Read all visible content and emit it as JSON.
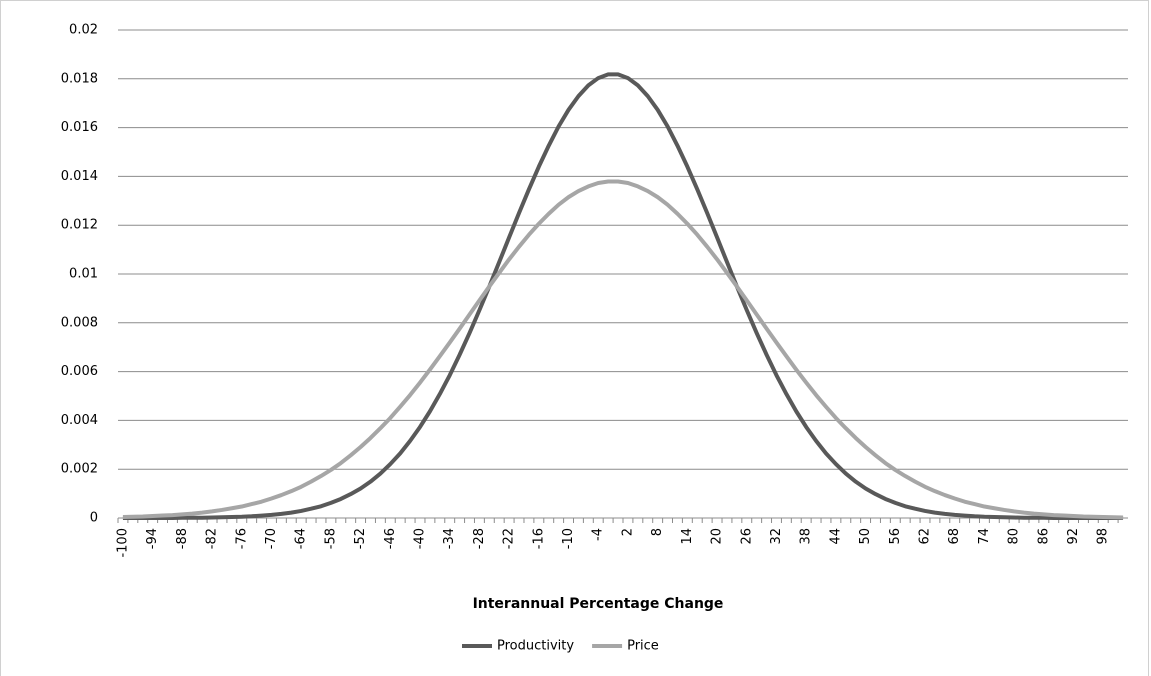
{
  "chart_data": {
    "type": "line",
    "x_label": "Interannual Percentage Change",
    "categories": [
      "-100",
      null,
      null,
      "-94",
      null,
      null,
      "-88",
      null,
      null,
      "-82",
      null,
      null,
      "-76",
      null,
      null,
      "-70",
      null,
      null,
      "-64",
      null,
      null,
      "-58",
      null,
      null,
      "-52",
      null,
      null,
      "-46",
      null,
      null,
      "-40",
      null,
      null,
      "-34",
      null,
      null,
      "-28",
      null,
      null,
      "-22",
      null,
      null,
      "-16",
      null,
      null,
      "-10",
      null,
      null,
      "-4",
      null,
      null,
      "2",
      null,
      null,
      "8",
      null,
      null,
      "14",
      null,
      null,
      "20",
      null,
      null,
      "26",
      null,
      null,
      "32",
      null,
      null,
      "38",
      null,
      null,
      "44",
      null,
      null,
      "50",
      null,
      null,
      "56",
      null,
      null,
      "62",
      null,
      null,
      "68",
      null,
      null,
      "74",
      null,
      null,
      "80",
      null,
      null,
      "86",
      null,
      null,
      "92",
      null,
      null,
      "98",
      null,
      null
    ],
    "series": [
      {
        "name": "Productivity",
        "color": "#595959",
        "values": [
          0,
          0,
          0,
          0,
          0,
          0,
          1e-05,
          1e-05,
          1e-05,
          2e-05,
          3e-05,
          4e-05,
          5e-05,
          7e-05,
          0.0001,
          0.00013,
          0.00017,
          0.00022,
          0.00029,
          0.00038,
          0.00048,
          0.00062,
          0.00078,
          0.00098,
          0.00121,
          0.00149,
          0.00182,
          0.00221,
          0.00265,
          0.00316,
          0.00373,
          0.00437,
          0.00508,
          0.00585,
          0.00669,
          0.00758,
          0.00852,
          0.00949,
          0.01049,
          0.0115,
          0.0125,
          0.01347,
          0.0144,
          0.01526,
          0.01605,
          0.01673,
          0.01729,
          0.01773,
          0.01803,
          0.01818,
          0.01818,
          0.01803,
          0.01773,
          0.01729,
          0.01673,
          0.01605,
          0.01526,
          0.0144,
          0.01347,
          0.0125,
          0.0115,
          0.01049,
          0.00949,
          0.00852,
          0.00758,
          0.00669,
          0.00585,
          0.00508,
          0.00437,
          0.00373,
          0.00316,
          0.00265,
          0.00221,
          0.00182,
          0.00149,
          0.00121,
          0.00098,
          0.00078,
          0.00062,
          0.00048,
          0.00038,
          0.00029,
          0.00022,
          0.00017,
          0.00013,
          0.0001,
          7e-05,
          5e-05,
          4e-05,
          3e-05,
          2e-05,
          1e-05,
          1e-05,
          1e-05,
          0,
          0,
          0,
          0,
          0,
          0,
          0,
          0
        ]
      },
      {
        "name": "Price",
        "color": "#a6a6a6",
        "values": [
          4e-05,
          5e-05,
          6e-05,
          8e-05,
          0.0001,
          0.00012,
          0.00015,
          0.00018,
          0.00022,
          0.00027,
          0.00033,
          0.0004,
          0.00047,
          0.00057,
          0.00067,
          0.0008,
          0.00094,
          0.0011,
          0.00128,
          0.00149,
          0.00172,
          0.00197,
          0.00225,
          0.00257,
          0.00291,
          0.00328,
          0.00368,
          0.0041,
          0.00456,
          0.00504,
          0.00555,
          0.00608,
          0.00663,
          0.00719,
          0.00776,
          0.00834,
          0.00892,
          0.00949,
          0.01005,
          0.0106,
          0.01112,
          0.01161,
          0.01206,
          0.01247,
          0.01284,
          0.01315,
          0.0134,
          0.01359,
          0.01373,
          0.01379,
          0.01379,
          0.01373,
          0.01359,
          0.0134,
          0.01315,
          0.01284,
          0.01247,
          0.01206,
          0.01161,
          0.01112,
          0.0106,
          0.01005,
          0.00949,
          0.00892,
          0.00834,
          0.00776,
          0.00719,
          0.00663,
          0.00608,
          0.00555,
          0.00504,
          0.00456,
          0.0041,
          0.00368,
          0.00328,
          0.00291,
          0.00257,
          0.00225,
          0.00197,
          0.00172,
          0.00149,
          0.00128,
          0.0011,
          0.00094,
          0.0008,
          0.00067,
          0.00057,
          0.00047,
          0.0004,
          0.00033,
          0.00027,
          0.00022,
          0.00018,
          0.00015,
          0.00012,
          0.0001,
          8e-05,
          6e-05,
          5e-05,
          4e-05,
          3e-05,
          2e-05
        ]
      }
    ],
    "ylim": [
      0,
      0.02
    ],
    "yticks": [
      0,
      0.002,
      0.004,
      0.006,
      0.008,
      0.01,
      0.012,
      0.014,
      0.016,
      0.018,
      0.02
    ],
    "grid": true
  }
}
